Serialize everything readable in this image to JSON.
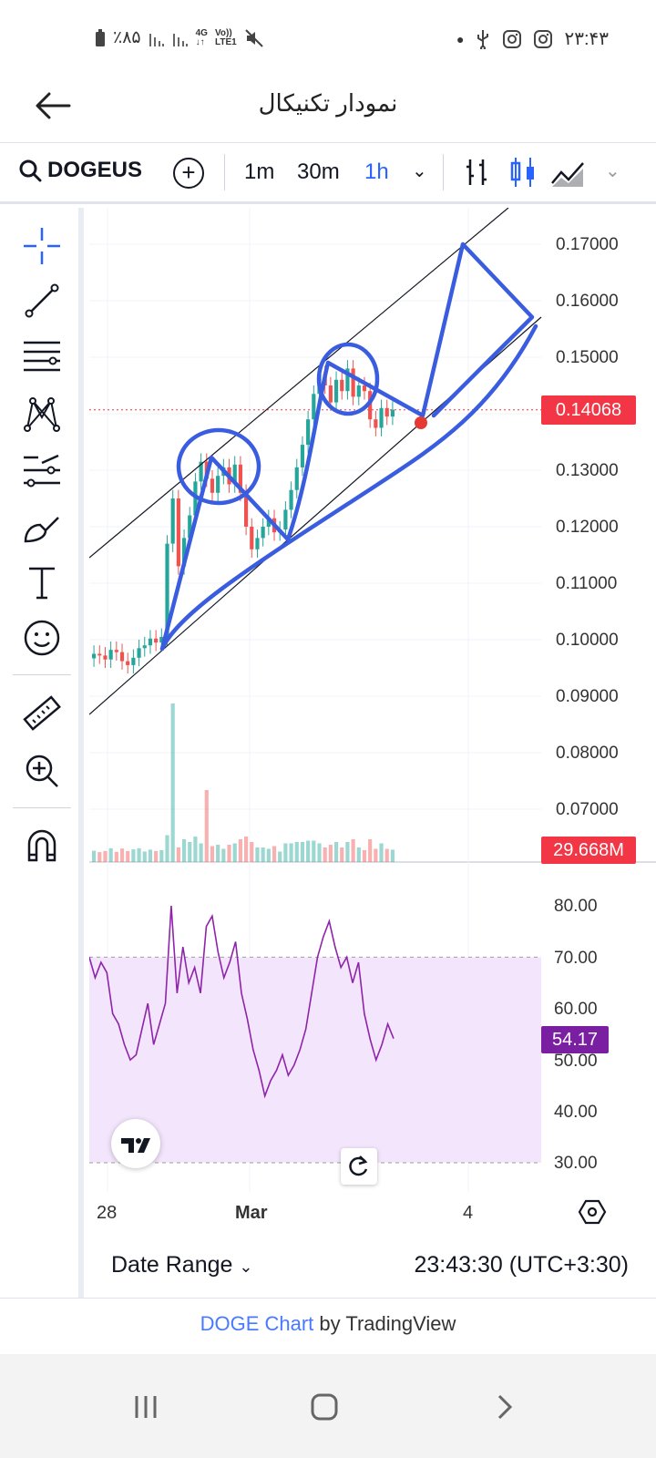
{
  "status_bar": {
    "battery": "٪۸۵",
    "network_top": "4G",
    "network_volte_top": "Vo))",
    "network_volte_bottom": "LTE1",
    "time": "۲۳:۴۳"
  },
  "app_bar": {
    "title": "نمودار تکنیکال"
  },
  "toolbar": {
    "symbol": "DOGEUS",
    "intervals": [
      "1m",
      "30m",
      "1h"
    ],
    "active_interval": "1h"
  },
  "price_axis": {
    "labels": [
      "0.17000",
      "0.16000",
      "0.15000",
      "0.13000",
      "0.12000",
      "0.11000",
      "0.10000",
      "0.09000",
      "0.08000",
      "0.07000"
    ],
    "last_price": "0.14068",
    "volume": "29.668M"
  },
  "rsi_axis": {
    "labels": [
      "80.00",
      "70.00",
      "60.00",
      "50.00",
      "40.00",
      "30.00"
    ],
    "current": "54.17"
  },
  "time_axis": {
    "labels": [
      "28",
      "Mar",
      "4"
    ]
  },
  "bottom": {
    "date_range": "Date Range",
    "clock": "23:43:30 (UTC+3:30)"
  },
  "footer": {
    "link": "DOGE Chart",
    "suffix": " by TradingView"
  },
  "chart_data": [
    {
      "type": "candlestick",
      "title": "",
      "ylim": [
        0.065,
        0.175
      ],
      "last_price": 0.14068,
      "close_approx": [
        0.0975,
        0.0972,
        0.0965,
        0.0982,
        0.0978,
        0.0962,
        0.0955,
        0.0968,
        0.0985,
        0.099,
        0.1002,
        0.0995,
        0.1005,
        0.117,
        0.125,
        0.113,
        0.118,
        0.122,
        0.128,
        0.1315,
        0.1285,
        0.126,
        0.129,
        0.1305,
        0.1275,
        0.131,
        0.126,
        0.12,
        0.116,
        0.118,
        0.12,
        0.1215,
        0.119,
        0.1195,
        0.123,
        0.1265,
        0.1305,
        0.1345,
        0.139,
        0.1435,
        0.147,
        0.145,
        0.142,
        0.146,
        0.144,
        0.148,
        0.143,
        0.145,
        0.144,
        0.139,
        0.1375,
        0.141,
        0.1395,
        0.1407
      ],
      "volume_note": "volume bars under price pane, last 29.668M"
    },
    {
      "type": "line",
      "name": "RSI",
      "ylim": [
        27,
        85
      ],
      "band": [
        30,
        70
      ],
      "values": [
        70,
        66,
        69,
        67,
        59,
        57,
        53,
        50,
        51,
        56,
        61,
        53,
        57,
        61,
        80,
        63,
        72,
        65,
        68,
        63,
        76,
        78,
        71,
        66,
        69,
        73,
        63,
        58,
        52,
        48,
        43,
        46,
        48,
        51,
        47,
        49,
        52,
        56,
        63,
        70,
        74,
        77,
        72,
        68,
        70,
        65,
        69,
        59,
        54,
        50,
        53,
        57,
        54.17
      ],
      "current": 54.17
    }
  ]
}
